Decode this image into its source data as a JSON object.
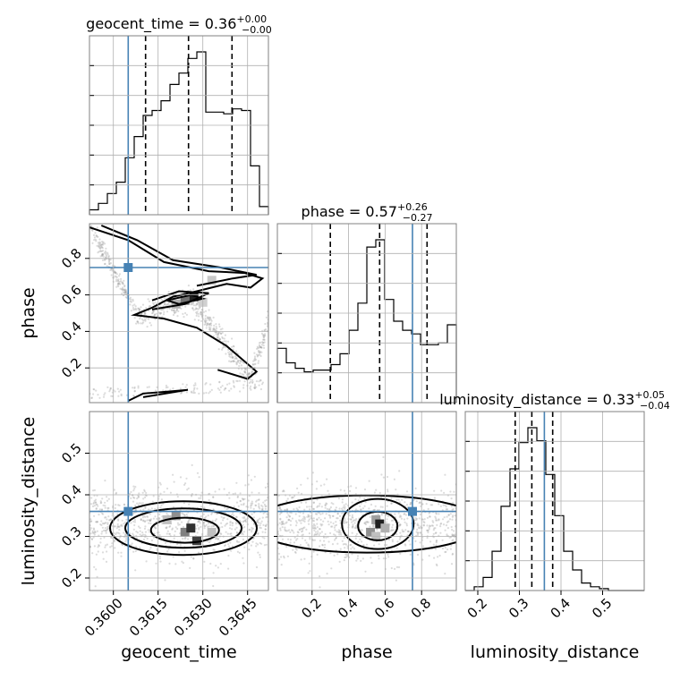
{
  "chart_data": {
    "type": "corner",
    "parameters": [
      "geocent_time",
      "phase",
      "luminosity_distance"
    ],
    "truths": {
      "geocent_time": 0.3605,
      "phase": 0.75,
      "luminosity_distance": 0.36
    },
    "ranges": {
      "geocent_time": [
        0.3592,
        0.3652
      ],
      "phase": [
        0.01,
        0.99
      ],
      "luminosity_distance": [
        0.17,
        0.6
      ]
    },
    "ticks": {
      "geocent_time": [
        0.36,
        0.3615,
        0.363,
        0.3645
      ],
      "phase": [
        0.2,
        0.4,
        0.6,
        0.8
      ],
      "luminosity_distance": [
        0.2,
        0.3,
        0.4,
        0.5
      ]
    },
    "tick_labels": {
      "geocent_time": [
        "0.3600",
        "0.3615",
        "0.3630",
        "0.3645"
      ],
      "phase": [
        "0.2",
        "0.4",
        "0.6",
        "0.8"
      ],
      "luminosity_distance": [
        "0.2",
        "0.3",
        "0.4",
        "0.5"
      ]
    },
    "titles": {
      "geocent_time": {
        "label": "geocent_time = 0.36",
        "plus": "+0.00",
        "minus": "−0.00"
      },
      "phase": {
        "label": "phase = 0.57",
        "plus": "+0.26",
        "minus": "−0.27"
      },
      "luminosity_distance": {
        "label": "luminosity_distance = 0.33",
        "plus": "+0.05",
        "minus": "−0.04"
      }
    },
    "quantiles": {
      "geocent_time": [
        0.36108,
        0.36252,
        0.36398
      ],
      "phase": [
        0.3,
        0.57,
        0.83
      ],
      "luminosity_distance": [
        0.29,
        0.33,
        0.38
      ]
    },
    "histograms": {
      "geocent_time": {
        "edges": [
          0.3592,
          0.3595,
          0.3598,
          0.3601,
          0.3604,
          0.3607,
          0.361,
          0.3613,
          0.3616,
          0.3619,
          0.3622,
          0.3625,
          0.3628,
          0.3631,
          0.3634,
          0.3637,
          0.364,
          0.3643,
          0.3646,
          0.3649,
          0.3652
        ],
        "counts": [
          0.03,
          0.07,
          0.13,
          0.2,
          0.35,
          0.48,
          0.61,
          0.64,
          0.7,
          0.8,
          0.87,
          0.96,
          1.0,
          0.63,
          0.63,
          0.62,
          0.65,
          0.64,
          0.3,
          0.05
        ]
      },
      "phase": {
        "edges": [
          0.01,
          0.059,
          0.108,
          0.157,
          0.206,
          0.255,
          0.304,
          0.353,
          0.402,
          0.451,
          0.5,
          0.549,
          0.598,
          0.647,
          0.696,
          0.745,
          0.794,
          0.843,
          0.892,
          0.941,
          0.99
        ],
        "counts": [
          0.3,
          0.22,
          0.19,
          0.17,
          0.18,
          0.18,
          0.21,
          0.27,
          0.4,
          0.55,
          0.86,
          0.9,
          0.57,
          0.45,
          0.4,
          0.38,
          0.32,
          0.32,
          0.33,
          0.43
        ]
      },
      "luminosity_distance": {
        "edges": [
          0.17,
          0.1915,
          0.213,
          0.2345,
          0.256,
          0.2775,
          0.299,
          0.3205,
          0.342,
          0.3635,
          0.385,
          0.4065,
          0.428,
          0.4495,
          0.471,
          0.4925,
          0.514,
          0.5355,
          0.557,
          0.5785,
          0.6
        ],
        "counts": [
          0.0,
          0.02,
          0.07,
          0.21,
          0.45,
          0.65,
          0.79,
          0.87,
          0.8,
          0.62,
          0.4,
          0.21,
          0.11,
          0.04,
          0.02,
          0.01,
          0.0,
          0.0,
          0.0,
          0.0
        ]
      }
    },
    "grid": true
  }
}
